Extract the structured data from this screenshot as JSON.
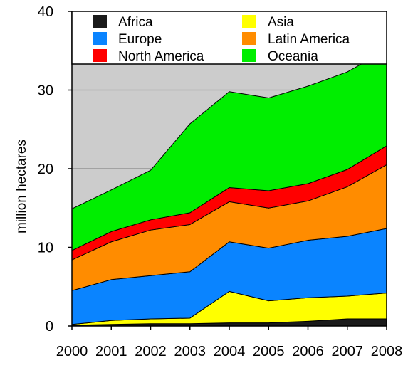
{
  "chart_data": {
    "type": "area",
    "stacked": true,
    "title": "",
    "xlabel": "",
    "ylabel": "million hectares",
    "x": [
      "2000",
      "2001",
      "2002",
      "2003",
      "2004",
      "2005",
      "2006",
      "2007",
      "2008"
    ],
    "ylim": [
      0,
      40
    ],
    "yticks": [
      "0",
      "10",
      "20",
      "30",
      "40"
    ],
    "grid": true,
    "plot_background": "#cccccc",
    "legend_position": "top",
    "series": [
      {
        "name": "Africa",
        "color": "#1a1a1a",
        "values": [
          0.1,
          0.2,
          0.3,
          0.3,
          0.4,
          0.4,
          0.6,
          0.9,
          0.9
        ]
      },
      {
        "name": "Asia",
        "color": "#ffff00",
        "values": [
          0.1,
          0.5,
          0.6,
          0.7,
          4.0,
          2.8,
          3.0,
          2.9,
          3.3
        ]
      },
      {
        "name": "Europe",
        "color": "#0a84ff",
        "values": [
          4.3,
          5.2,
          5.5,
          5.9,
          6.3,
          6.7,
          7.3,
          7.6,
          8.2
        ]
      },
      {
        "name": "Latin America",
        "color": "#ff8c00",
        "values": [
          3.9,
          4.8,
          5.8,
          6.0,
          5.1,
          5.1,
          5.0,
          6.3,
          8.1
        ]
      },
      {
        "name": "North America",
        "color": "#ff0000",
        "values": [
          1.2,
          1.3,
          1.3,
          1.5,
          1.8,
          2.2,
          2.2,
          2.2,
          2.4
        ]
      },
      {
        "name": "Oceania",
        "color": "#00ee00",
        "values": [
          5.3,
          5.3,
          6.3,
          11.3,
          12.2,
          11.8,
          12.4,
          12.4,
          12.2
        ]
      }
    ]
  }
}
